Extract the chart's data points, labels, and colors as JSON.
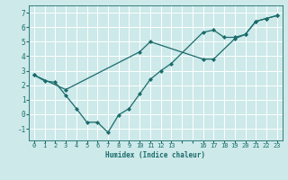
{
  "xlabel": "Humidex (Indice chaleur)",
  "bg_color": "#cde9e9",
  "grid_color": "#ffffff",
  "line_color": "#1a6b6b",
  "xlim": [
    -0.5,
    23.5
  ],
  "ylim": [
    -1.8,
    7.5
  ],
  "xticks_all": [
    0,
    1,
    2,
    3,
    4,
    5,
    6,
    7,
    8,
    9,
    10,
    11,
    12,
    13,
    14,
    15,
    16,
    17,
    18,
    19,
    20,
    21,
    22,
    23
  ],
  "xtick_labels": [
    "0",
    "1",
    "2",
    "3",
    "4",
    "5",
    "6",
    "7",
    "8",
    "9",
    "10",
    "11",
    "12",
    "13",
    "",
    "",
    "16",
    "17",
    "18",
    "19",
    "20",
    "21",
    "22",
    "23"
  ],
  "yticks": [
    -1,
    0,
    1,
    2,
    3,
    4,
    5,
    6,
    7
  ],
  "line1_x": [
    0,
    1,
    2,
    3,
    4,
    5,
    6,
    7,
    8,
    9,
    10,
    11,
    12,
    13,
    16,
    17,
    18,
    19,
    20,
    21,
    22,
    23
  ],
  "line1_y": [
    2.7,
    2.3,
    2.2,
    1.3,
    0.4,
    -0.55,
    -0.55,
    -1.25,
    -0.05,
    0.4,
    1.4,
    2.4,
    3.0,
    3.5,
    5.65,
    5.8,
    5.3,
    5.3,
    5.5,
    6.4,
    6.6,
    6.8
  ],
  "line2_x": [
    0,
    3,
    10,
    11,
    16,
    17,
    19,
    20,
    21,
    22,
    23
  ],
  "line2_y": [
    2.7,
    1.7,
    4.3,
    5.0,
    3.8,
    3.8,
    5.2,
    5.5,
    6.4,
    6.6,
    6.8
  ]
}
